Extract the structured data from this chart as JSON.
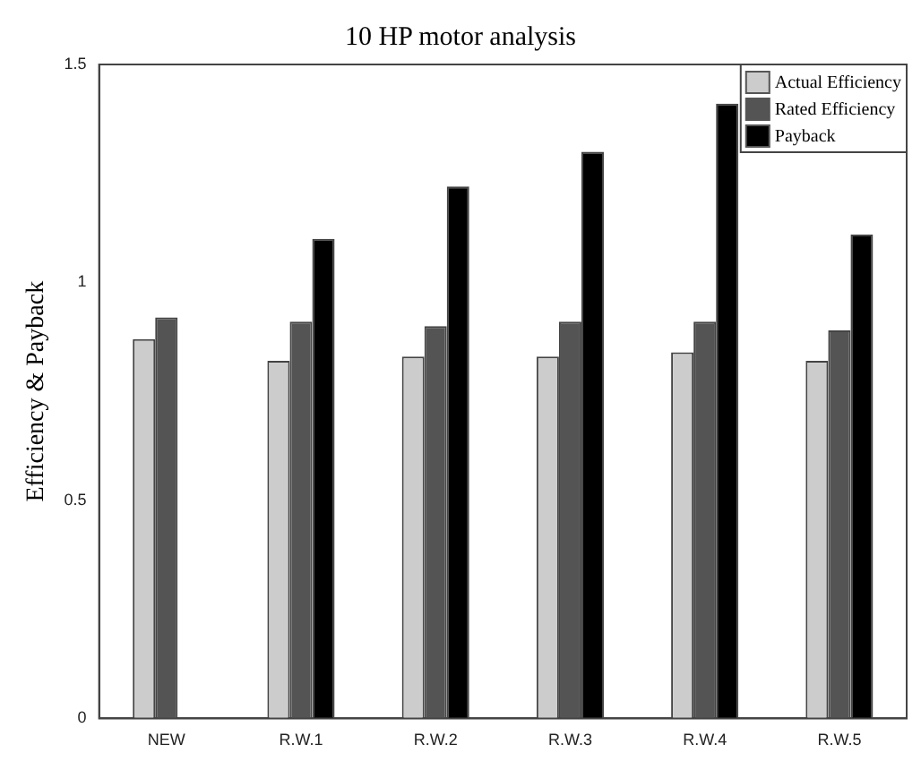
{
  "chart_data": {
    "type": "bar",
    "title": "10 HP motor analysis",
    "ylabel": "Efficiency & Payback",
    "categories": [
      "NEW",
      "R.W.1",
      "R.W.2",
      "R.W.3",
      "R.W.4",
      "R.W.5"
    ],
    "series": [
      {
        "name": "Actual Efficiency",
        "color": "#cccccc",
        "values": [
          0.87,
          0.82,
          0.83,
          0.83,
          0.84,
          0.82
        ]
      },
      {
        "name": "Rated Efficiency",
        "color": "#545454",
        "values": [
          0.92,
          0.91,
          0.9,
          0.91,
          0.91,
          0.89
        ]
      },
      {
        "name": "Payback",
        "color": "#000000",
        "values": [
          null,
          1.1,
          1.22,
          1.3,
          1.41,
          1.11
        ]
      }
    ],
    "ylim": [
      0,
      1.5
    ],
    "yticks": [
      0,
      0.5,
      1,
      1.5
    ],
    "grid": false,
    "legend": "top right"
  }
}
